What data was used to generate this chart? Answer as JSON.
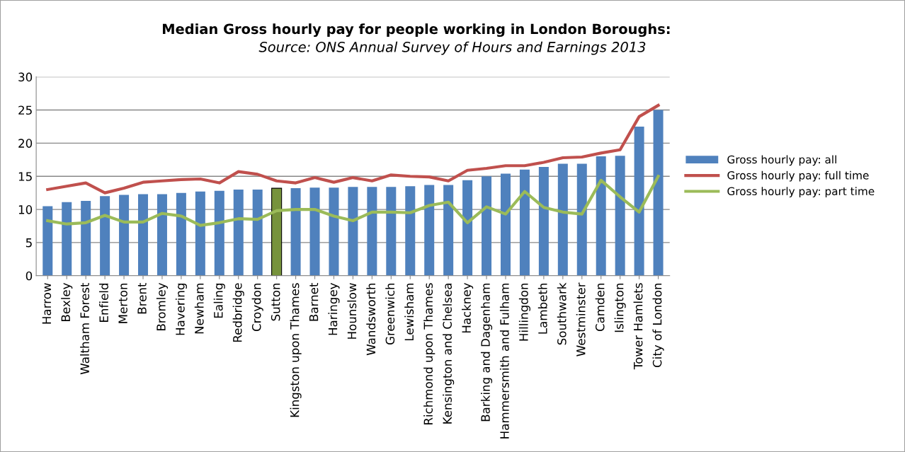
{
  "chart_data": {
    "type": "bar",
    "title": "Median Gross hourly pay for people working in London Boroughs:",
    "subtitle": "Source: ONS Annual Survey of Hours and Earnings 2013",
    "categories": [
      "Harrow",
      "Bexley",
      "Waltham Forest",
      "Enfield",
      "Merton",
      "Brent",
      "Bromley",
      "Havering",
      "Newham",
      "Ealing",
      "Redbridge",
      "Croydon",
      "Sutton",
      "Kingston upon Thames",
      "Barnet",
      "Haringey",
      "Hounslow",
      "Wandsworth",
      "Greenwich",
      "Lewisham",
      "Richmond upon Thames",
      "Kensington and Chelsea",
      "Hackney",
      "Barking and Dagenham",
      "Hammersmith and Fulham",
      "Hillingdon",
      "Lambeth",
      "Southwark",
      "Westminster",
      "Camden",
      "Islington",
      "Tower Hamlets",
      "City of London"
    ],
    "series": [
      {
        "name": "Gross hourly pay: all",
        "color": "#4f81bd",
        "colors": [
          "#4f81bd",
          "#4f81bd",
          "#4f81bd",
          "#4f81bd",
          "#4f81bd",
          "#4f81bd",
          "#4f81bd",
          "#4f81bd",
          "#4f81bd",
          "#4f81bd",
          "#4f81bd",
          "#4f81bd",
          "#77933c",
          "#4f81bd",
          "#4f81bd",
          "#4f81bd",
          "#4f81bd",
          "#4f81bd",
          "#4f81bd",
          "#4f81bd",
          "#4f81bd",
          "#4f81bd",
          "#4f81bd",
          "#4f81bd",
          "#4f81bd",
          "#4f81bd",
          "#4f81bd",
          "#4f81bd",
          "#4f81bd",
          "#4f81bd",
          "#4f81bd",
          "#4f81bd",
          "#4f81bd"
        ],
        "values": [
          10.5,
          11.1,
          11.3,
          12.0,
          12.2,
          12.3,
          12.3,
          12.5,
          12.7,
          12.8,
          13.0,
          13.0,
          13.2,
          13.2,
          13.3,
          13.3,
          13.4,
          13.4,
          13.4,
          13.5,
          13.7,
          13.7,
          14.4,
          15.0,
          15.4,
          16.0,
          16.4,
          16.9,
          16.9,
          18.0,
          18.1,
          22.5,
          25.0
        ]
      },
      {
        "name": "Gross hourly pay: full time",
        "type": "line",
        "color": "#c0504d",
        "values": [
          13.0,
          13.5,
          14.0,
          12.5,
          13.2,
          14.1,
          14.3,
          14.5,
          14.6,
          14.0,
          15.7,
          15.3,
          14.3,
          14.0,
          14.8,
          14.1,
          14.8,
          14.3,
          15.2,
          15.0,
          14.9,
          14.3,
          15.9,
          16.2,
          16.6,
          16.6,
          17.1,
          17.8,
          17.9,
          18.5,
          19.0,
          24.0,
          25.7
        ]
      },
      {
        "name": "Gross hourly pay: part time",
        "type": "line",
        "color": "#9bbb59",
        "values": [
          8.3,
          7.8,
          8.0,
          9.1,
          8.1,
          8.1,
          9.4,
          9.0,
          7.6,
          8.0,
          8.6,
          8.5,
          9.8,
          10.0,
          10.0,
          9.0,
          8.3,
          9.6,
          9.6,
          9.5,
          10.6,
          11.1,
          8.0,
          10.4,
          9.3,
          12.7,
          10.3,
          9.6,
          9.3,
          14.4,
          11.9,
          9.6,
          15.0
        ]
      }
    ],
    "ylim": [
      0,
      30
    ],
    "yticks": [
      0,
      5,
      10,
      15,
      20,
      25,
      30
    ],
    "grid": "y",
    "legend": "right",
    "marker": "none",
    "line_style": "solid"
  }
}
